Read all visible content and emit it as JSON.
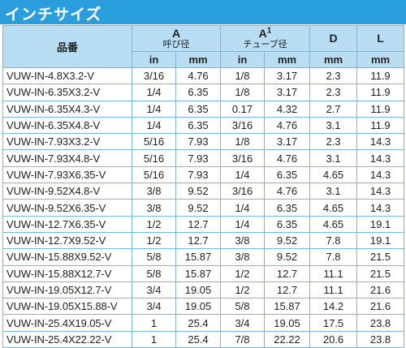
{
  "section_title": "インチサイズ",
  "header": {
    "part_label": "品番",
    "a_label": "A",
    "a_note": "呼び径",
    "a1_label": "A",
    "a1_sup": "1",
    "a1_note": "チューブ径",
    "d_label": "D",
    "l_label": "L",
    "sub": {
      "a_in": "in",
      "a_mm": "mm",
      "a1_in": "in",
      "a1_mm": "mm",
      "d_mm": "mm",
      "l_mm": "mm"
    }
  },
  "rows": [
    {
      "part": "VUW-IN-4.8X3.2-V",
      "a_in": "3/16",
      "a_mm": "4.76",
      "a1_in": "1/8",
      "a1_mm": "3.17",
      "d": "2.3",
      "l": "11.9"
    },
    {
      "part": "VUW-IN-6.35X3.2-V",
      "a_in": "1/4",
      "a_mm": "6.35",
      "a1_in": "1/8",
      "a1_mm": "3.17",
      "d": "2.3",
      "l": "11.9"
    },
    {
      "part": "VUW-IN-6.35X4.3-V",
      "a_in": "1/4",
      "a_mm": "6.35",
      "a1_in": "0.17",
      "a1_mm": "4.32",
      "d": "2.7",
      "l": "11.9"
    },
    {
      "part": "VUW-IN-6.35X4.8-V",
      "a_in": "1/4",
      "a_mm": "6.35",
      "a1_in": "3/16",
      "a1_mm": "4.76",
      "d": "3.1",
      "l": "11.9"
    },
    {
      "part": "VUW-IN-7.93X3.2-V",
      "a_in": "5/16",
      "a_mm": "7.93",
      "a1_in": "1/8",
      "a1_mm": "3.17",
      "d": "2.3",
      "l": "14.3"
    },
    {
      "part": "VUW-IN-7.93X4.8-V",
      "a_in": "5/16",
      "a_mm": "7.93",
      "a1_in": "3/16",
      "a1_mm": "4.76",
      "d": "3.1",
      "l": "14.3"
    },
    {
      "part": "VUW-IN-7.93X6.35-V",
      "a_in": "5/16",
      "a_mm": "7.93",
      "a1_in": "1/4",
      "a1_mm": "6.35",
      "d": "4.65",
      "l": "14.3"
    },
    {
      "part": "VUW-IN-9.52X4.8-V",
      "a_in": "3/8",
      "a_mm": "9.52",
      "a1_in": "3/16",
      "a1_mm": "4.76",
      "d": "3.1",
      "l": "14.3"
    },
    {
      "part": "VUW-IN-9.52X6.35-V",
      "a_in": "3/8",
      "a_mm": "9.52",
      "a1_in": "1/4",
      "a1_mm": "6.35",
      "d": "4.65",
      "l": "14.3"
    },
    {
      "part": "VUW-IN-12.7X6.35-V",
      "a_in": "1/2",
      "a_mm": "12.7",
      "a1_in": "1/4",
      "a1_mm": "6.35",
      "d": "4.65",
      "l": "19.1"
    },
    {
      "part": "VUW-IN-12.7X9.52-V",
      "a_in": "1/2",
      "a_mm": "12.7",
      "a1_in": "3/8",
      "a1_mm": "9.52",
      "d": "7.8",
      "l": "19.1"
    },
    {
      "part": "VUW-IN-15.88X9.52-V",
      "a_in": "5/8",
      "a_mm": "15.87",
      "a1_in": "3/8",
      "a1_mm": "9.52",
      "d": "7.8",
      "l": "21.5"
    },
    {
      "part": "VUW-IN-15.88X12.7-V",
      "a_in": "5/8",
      "a_mm": "15.87",
      "a1_in": "1/2",
      "a1_mm": "12.7",
      "d": "11.1",
      "l": "21.5"
    },
    {
      "part": "VUW-IN-19.05X12.7-V",
      "a_in": "3/4",
      "a_mm": "19.05",
      "a1_in": "1/2",
      "a1_mm": "12.7",
      "d": "11.1",
      "l": "21.6"
    },
    {
      "part": "VUW-IN-19.05X15.88-V",
      "a_in": "3/4",
      "a_mm": "19.05",
      "a1_in": "5/8",
      "a1_mm": "15.87",
      "d": "14.2",
      "l": "21.6"
    },
    {
      "part": "VUW-IN-25.4X19.05-V",
      "a_in": "1",
      "a_mm": "25.4",
      "a1_in": "3/4",
      "a1_mm": "19.05",
      "d": "17.5",
      "l": "23.8"
    },
    {
      "part": "VUW-IN-25.4X22.22-V",
      "a_in": "1",
      "a_mm": "25.4",
      "a1_in": "7/8",
      "a1_mm": "22.22",
      "d": "20.6",
      "l": "23.8"
    }
  ]
}
